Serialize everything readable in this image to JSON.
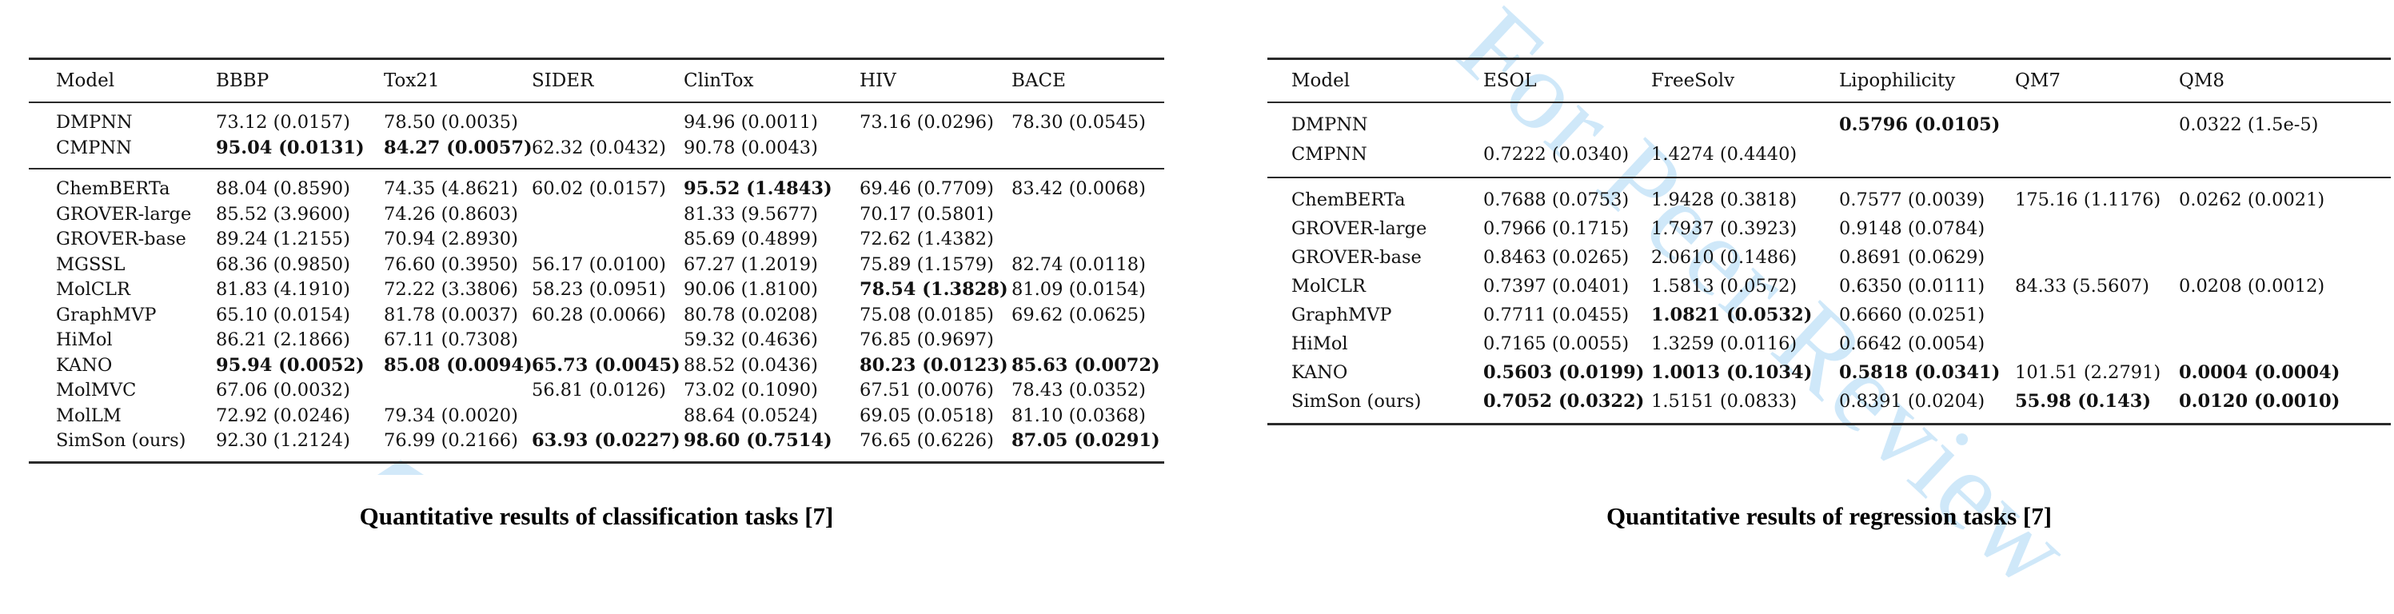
{
  "watermark": {
    "text": "For Peer Review",
    "color": "#cfe8f9"
  },
  "tables": [
    {
      "id": "classification",
      "caption": "Quantitative results of classification tasks [7]",
      "columns": [
        "Model",
        "BBBP",
        "Tox21",
        "SIDER",
        "ClinTox",
        "HIV",
        "BACE"
      ],
      "groups": [
        {
          "rows": [
            {
              "model": "DMPNN",
              "cells": [
                {
                  "t": "73.12 (0.0157)"
                },
                {
                  "t": "78.50 (0.0035)"
                },
                null,
                {
                  "t": "94.96 (0.0011)"
                },
                {
                  "t": "73.16 (0.0296)"
                },
                {
                  "t": "78.30 (0.0545)"
                }
              ]
            },
            {
              "model": "CMPNN",
              "cells": [
                {
                  "t": "95.04 (0.0131)",
                  "b": 1
                },
                {
                  "t": "84.27 (0.0057)",
                  "b": 1
                },
                {
                  "t": "62.32 (0.0432)"
                },
                {
                  "t": "90.78 (0.0043)"
                },
                null,
                null
              ]
            }
          ]
        },
        {
          "rows": [
            {
              "model": "ChemBERTa",
              "cells": [
                {
                  "t": "88.04 (0.8590)"
                },
                {
                  "t": "74.35 (4.8621)"
                },
                {
                  "t": "60.02 (0.0157)"
                },
                {
                  "t": "95.52 (1.4843)",
                  "b": 1
                },
                {
                  "t": "69.46 (0.7709)"
                },
                {
                  "t": "83.42 (0.0068)"
                }
              ]
            },
            {
              "model": "GROVER-large",
              "cells": [
                {
                  "t": "85.52 (3.9600)"
                },
                {
                  "t": "74.26 (0.8603)"
                },
                null,
                {
                  "t": "81.33 (9.5677)"
                },
                {
                  "t": "70.17 (0.5801)"
                },
                null
              ]
            },
            {
              "model": "GROVER-base",
              "cells": [
                {
                  "t": "89.24 (1.2155)"
                },
                {
                  "t": "70.94 (2.8930)"
                },
                null,
                {
                  "t": "85.69 (0.4899)"
                },
                {
                  "t": "72.62 (1.4382)"
                },
                null
              ]
            },
            {
              "model": "MGSSL",
              "cells": [
                {
                  "t": "68.36 (0.9850)"
                },
                {
                  "t": "76.60 (0.3950)"
                },
                {
                  "t": "56.17 (0.0100)"
                },
                {
                  "t": "67.27 (1.2019)"
                },
                {
                  "t": "75.89 (1.1579)"
                },
                {
                  "t": "82.74 (0.0118)"
                }
              ]
            },
            {
              "model": "MolCLR",
              "cells": [
                {
                  "t": "81.83 (4.1910)"
                },
                {
                  "t": "72.22 (3.3806)"
                },
                {
                  "t": "58.23 (0.0951)"
                },
                {
                  "t": "90.06 (1.8100)"
                },
                {
                  "t": "78.54 (1.3828)",
                  "b": 1
                },
                {
                  "t": "81.09 (0.0154)"
                }
              ]
            },
            {
              "model": "GraphMVP",
              "cells": [
                {
                  "t": "65.10 (0.0154)"
                },
                {
                  "t": "81.78 (0.0037)"
                },
                {
                  "t": "60.28 (0.0066)"
                },
                {
                  "t": "80.78 (0.0208)"
                },
                {
                  "t": "75.08 (0.0185)"
                },
                {
                  "t": "69.62 (0.0625)"
                }
              ]
            },
            {
              "model": "HiMol",
              "cells": [
                {
                  "t": "86.21 (2.1866)"
                },
                {
                  "t": "67.11 (0.7308)"
                },
                null,
                {
                  "t": "59.32 (0.4636)"
                },
                {
                  "t": "76.85 (0.9697)"
                },
                null
              ]
            },
            {
              "model": "KANO",
              "cells": [
                {
                  "t": "95.94 (0.0052)",
                  "b": 1
                },
                {
                  "t": "85.08 (0.0094)",
                  "b": 1
                },
                {
                  "t": "65.73 (0.0045)",
                  "b": 1
                },
                {
                  "t": "88.52 (0.0436)"
                },
                {
                  "t": "80.23 (0.0123)",
                  "b": 1
                },
                {
                  "t": "85.63 (0.0072)",
                  "b": 1
                }
              ]
            },
            {
              "model": "MolMVC",
              "cells": [
                {
                  "t": "67.06 (0.0032)"
                },
                null,
                {
                  "t": "56.81 (0.0126)"
                },
                {
                  "t": "73.02 (0.1090)"
                },
                {
                  "t": "67.51 (0.0076)"
                },
                {
                  "t": "78.43 (0.0352)"
                }
              ]
            },
            {
              "model": "MolLM",
              "cells": [
                {
                  "t": "72.92 (0.0246)"
                },
                {
                  "t": "79.34 (0.0020)"
                },
                null,
                {
                  "t": "88.64 (0.0524)"
                },
                {
                  "t": "69.05 (0.0518)"
                },
                {
                  "t": "81.10 (0.0368)"
                }
              ]
            },
            {
              "model": "SimSon (ours)",
              "cells": [
                {
                  "t": "92.30 (1.2124)"
                },
                {
                  "t": "76.99 (0.2166)"
                },
                {
                  "t": "63.93 (0.0227)",
                  "b": 1
                },
                {
                  "t": "98.60 (0.7514)",
                  "b": 1
                },
                {
                  "t": "76.65 (0.6226)"
                },
                {
                  "t": "87.05 (0.0291)",
                  "b": 1
                }
              ]
            }
          ]
        }
      ]
    },
    {
      "id": "regression",
      "caption": "Quantitative results of regression tasks [7]",
      "columns": [
        "Model",
        "ESOL",
        "FreeSolv",
        "Lipophilicity",
        "QM7",
        "QM8"
      ],
      "groups": [
        {
          "rows": [
            {
              "model": "DMPNN",
              "cells": [
                null,
                null,
                {
                  "t": "0.5796 (0.0105)",
                  "b": 1
                },
                null,
                {
                  "t": "0.0322 (1.5e-5)"
                }
              ]
            },
            {
              "model": "CMPNN",
              "cells": [
                {
                  "t": "0.7222 (0.0340)"
                },
                {
                  "t": "1.4274 (0.4440)"
                },
                null,
                null,
                null
              ]
            }
          ]
        },
        {
          "rows": [
            {
              "model": "ChemBERTa",
              "cells": [
                {
                  "t": "0.7688 (0.0753)"
                },
                {
                  "t": "1.9428 (0.3818)"
                },
                {
                  "t": "0.7577 (0.0039)"
                },
                {
                  "t": "175.16 (1.1176)"
                },
                {
                  "t": "0.0262 (0.0021)"
                }
              ]
            },
            {
              "model": "GROVER-large",
              "cells": [
                {
                  "t": "0.7966 (0.1715)"
                },
                {
                  "t": "1.7937 (0.3923)"
                },
                {
                  "t": "0.9148 (0.0784)"
                },
                null,
                null
              ]
            },
            {
              "model": "GROVER-base",
              "cells": [
                {
                  "t": "0.8463 (0.0265)"
                },
                {
                  "t": "2.0610 (0.1486)"
                },
                {
                  "t": "0.8691 (0.0629)"
                },
                null,
                null
              ]
            },
            {
              "model": "MolCLR",
              "cells": [
                {
                  "t": "0.7397 (0.0401)"
                },
                {
                  "t": "1.5813 (0.0572)"
                },
                {
                  "t": "0.6350 (0.0111)"
                },
                {
                  "t": "84.33 (5.5607)"
                },
                {
                  "t": "0.0208 (0.0012)"
                }
              ]
            },
            {
              "model": "GraphMVP",
              "cells": [
                {
                  "t": "0.7711 (0.0455)"
                },
                {
                  "t": "1.0821 (0.0532)",
                  "b": 1
                },
                {
                  "t": "0.6660 (0.0251)"
                },
                null,
                null
              ]
            },
            {
              "model": "HiMol",
              "cells": [
                {
                  "t": "0.7165 (0.0055)"
                },
                {
                  "t": "1.3259 (0.0116)"
                },
                {
                  "t": "0.6642 (0.0054)"
                },
                null,
                null
              ]
            },
            {
              "model": "KANO",
              "cells": [
                {
                  "t": "0.5603 (0.0199)",
                  "b": 1
                },
                {
                  "t": "1.0013 (0.1034)",
                  "b": 1
                },
                {
                  "t": "0.5818 (0.0341)",
                  "b": 1
                },
                {
                  "t": "101.51 (2.2791)"
                },
                {
                  "t": "0.0004 (0.0004)",
                  "b": 1
                }
              ]
            },
            {
              "model": "SimSon (ours)",
              "cells": [
                {
                  "t": "0.7052 (0.0322)",
                  "b": 1
                },
                {
                  "t": "1.5151 (0.0833)"
                },
                {
                  "t": "0.8391 (0.0204)"
                },
                {
                  "t": "55.98 (0.143)",
                  "b": 1
                },
                {
                  "t": "0.0120 (0.0010)",
                  "b": 1
                }
              ]
            }
          ]
        }
      ]
    }
  ]
}
